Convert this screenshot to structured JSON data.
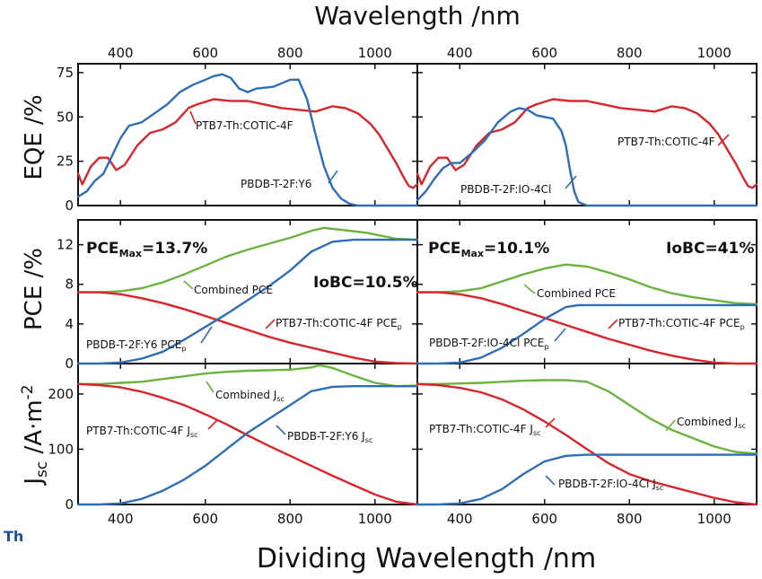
{
  "figure": {
    "top_title": "Wavelength /nm",
    "bottom_title": "Dividing Wavelength /nm",
    "corner_text": "Th",
    "colors": {
      "red": "#d7262b",
      "blue": "#2f6db6",
      "green": "#6ab33e",
      "axis": "#111111"
    }
  },
  "rows": {
    "eqe": {
      "ylabel_main": "EQE /%",
      "ylim": [
        0,
        80
      ],
      "yticks": [
        "0",
        "25",
        "50",
        "75"
      ],
      "ytick_values": [
        0,
        25,
        50,
        75
      ]
    },
    "pce": {
      "ylabel_main": "PCE /%",
      "ylim": [
        0,
        14.5
      ],
      "yticks": [
        "0",
        "4",
        "8",
        "12"
      ],
      "ytick_values": [
        0,
        4,
        8,
        12
      ]
    },
    "jsc": {
      "ylabel_main": "J",
      "ylabel_sub": "sc",
      "ylabel_unit": " /A·m",
      "ylabel_sup": "-2",
      "ylim": [
        0,
        255
      ],
      "yticks": [
        "0",
        "100",
        "200"
      ],
      "ytick_values": [
        0,
        100,
        200
      ]
    }
  },
  "xaxis": {
    "xlim": [
      300,
      1100
    ],
    "ticks": [
      "400",
      "600",
      "800",
      "1000"
    ],
    "tick_values": [
      400,
      600,
      800,
      1000
    ]
  },
  "chart_data": [
    {
      "type": "line",
      "panel": "eqe-left",
      "xlabel": "Wavelength /nm",
      "ylabel": "EQE /%",
      "series": [
        {
          "name": "PTB7-Th:COTIC-4F",
          "color": "red",
          "x": [
            300,
            310,
            330,
            350,
            370,
            390,
            410,
            440,
            470,
            500,
            530,
            560,
            580,
            620,
            660,
            700,
            740,
            780,
            820,
            860,
            900,
            930,
            960,
            990,
            1010,
            1030,
            1050,
            1070,
            1080,
            1090,
            1100
          ],
          "y": [
            18,
            12,
            22,
            27,
            27,
            20,
            23,
            34,
            41,
            43,
            47,
            55,
            57,
            60,
            59,
            59,
            57,
            55,
            54,
            53,
            56,
            55,
            52,
            46,
            40,
            32,
            24,
            15,
            11,
            10,
            12
          ]
        },
        {
          "name": "PBDB-T-2F:Y6",
          "color": "blue",
          "x": [
            300,
            320,
            340,
            360,
            380,
            400,
            420,
            450,
            480,
            510,
            540,
            570,
            600,
            620,
            640,
            660,
            680,
            700,
            720,
            760,
            800,
            820,
            840,
            860,
            880,
            900,
            920,
            940,
            960,
            1000,
            1100
          ],
          "y": [
            5,
            8,
            14,
            18,
            28,
            38,
            45,
            47,
            52,
            57,
            64,
            68,
            71,
            73,
            74,
            72,
            66,
            64,
            66,
            67,
            71,
            71,
            60,
            40,
            22,
            10,
            4,
            1,
            0,
            0,
            0
          ]
        }
      ]
    },
    {
      "type": "line",
      "panel": "eqe-right",
      "xlabel": "Wavelength /nm",
      "ylabel": "EQE /%",
      "series": [
        {
          "name": "PTB7-Th:COTIC-4F",
          "color": "red",
          "x": [
            300,
            310,
            330,
            350,
            370,
            390,
            410,
            440,
            470,
            500,
            530,
            560,
            580,
            620,
            660,
            700,
            740,
            780,
            820,
            860,
            900,
            930,
            960,
            990,
            1010,
            1030,
            1050,
            1070,
            1080,
            1090,
            1100
          ],
          "y": [
            18,
            12,
            22,
            27,
            27,
            20,
            23,
            34,
            41,
            43,
            47,
            55,
            57,
            60,
            59,
            59,
            57,
            55,
            54,
            53,
            56,
            55,
            52,
            46,
            40,
            32,
            24,
            15,
            11,
            10,
            12
          ]
        },
        {
          "name": "PBDB-T-2F:IO-4Cl",
          "color": "blue",
          "x": [
            300,
            320,
            340,
            360,
            380,
            400,
            430,
            460,
            490,
            520,
            540,
            560,
            580,
            600,
            620,
            640,
            650,
            660,
            670,
            680,
            700,
            750,
            1100
          ],
          "y": [
            3,
            8,
            15,
            21,
            24,
            24,
            30,
            37,
            47,
            53,
            55,
            54,
            51,
            50,
            49,
            42,
            34,
            20,
            8,
            2,
            0,
            0,
            0
          ]
        }
      ]
    },
    {
      "type": "line",
      "panel": "pce-left",
      "xlabel": "Dividing Wavelength /nm",
      "ylabel": "PCE /%",
      "series": [
        {
          "name": "Combined PCE",
          "color": "green",
          "x": [
            300,
            350,
            400,
            450,
            500,
            550,
            600,
            650,
            700,
            750,
            800,
            850,
            880,
            920,
            980,
            1050,
            1100
          ],
          "y": [
            7.2,
            7.2,
            7.3,
            7.6,
            8.2,
            9.0,
            9.9,
            10.8,
            11.5,
            12.1,
            12.7,
            13.4,
            13.7,
            13.5,
            13.2,
            12.6,
            12.5
          ]
        },
        {
          "name": "PTB7-Th:COTIC-4F PCE",
          "color": "red",
          "x": [
            300,
            350,
            400,
            450,
            500,
            550,
            600,
            650,
            700,
            750,
            800,
            850,
            900,
            950,
            1000,
            1050,
            1100
          ],
          "y": [
            7.2,
            7.2,
            7.0,
            6.6,
            6.1,
            5.5,
            4.8,
            4.1,
            3.4,
            2.7,
            2.1,
            1.6,
            1.1,
            0.6,
            0.2,
            0.05,
            0
          ]
        },
        {
          "name": "PBDB-T-2F:Y6 PCE",
          "color": "blue",
          "x": [
            300,
            350,
            400,
            450,
            500,
            550,
            600,
            650,
            700,
            750,
            800,
            850,
            900,
            950,
            1000,
            1050,
            1100
          ],
          "y": [
            0,
            0,
            0.1,
            0.5,
            1.2,
            2.4,
            3.7,
            5.0,
            6.4,
            7.8,
            9.4,
            11.3,
            12.3,
            12.5,
            12.5,
            12.5,
            12.5
          ]
        }
      ]
    },
    {
      "type": "line",
      "panel": "pce-right",
      "xlabel": "Dividing Wavelength /nm",
      "ylabel": "PCE /%",
      "series": [
        {
          "name": "Combined PCE",
          "color": "green",
          "x": [
            300,
            350,
            400,
            450,
            500,
            550,
            600,
            650,
            700,
            750,
            800,
            850,
            900,
            950,
            1000,
            1050,
            1100
          ],
          "y": [
            7.2,
            7.2,
            7.3,
            7.6,
            8.3,
            9.0,
            9.6,
            10.0,
            9.8,
            9.2,
            8.5,
            7.7,
            7.1,
            6.7,
            6.4,
            6.1,
            6.0
          ]
        },
        {
          "name": "PTB7-Th:COTIC-4F PCE",
          "color": "red",
          "x": [
            300,
            350,
            400,
            450,
            500,
            550,
            600,
            650,
            700,
            750,
            800,
            850,
            900,
            950,
            1000,
            1050,
            1100
          ],
          "y": [
            7.2,
            7.2,
            7.0,
            6.6,
            6.0,
            5.3,
            4.6,
            3.9,
            3.2,
            2.5,
            1.9,
            1.3,
            0.8,
            0.4,
            0.1,
            0,
            0
          ]
        },
        {
          "name": "PBDB-T-2F:IO-4Cl PCE",
          "color": "blue",
          "x": [
            300,
            350,
            400,
            450,
            500,
            550,
            600,
            650,
            680,
            700,
            1100
          ],
          "y": [
            0,
            0,
            0.1,
            0.6,
            1.6,
            3.0,
            4.5,
            5.7,
            5.9,
            5.9,
            5.9
          ]
        }
      ]
    },
    {
      "type": "line",
      "panel": "jsc-left",
      "xlabel": "Dividing Wavelength /nm",
      "ylabel": "Jsc /A·m-2",
      "series": [
        {
          "name": "Combined Jsc",
          "color": "green",
          "x": [
            300,
            350,
            400,
            450,
            500,
            550,
            600,
            650,
            700,
            750,
            800,
            850,
            870,
            900,
            950,
            1000,
            1050,
            1100
          ],
          "y": [
            218,
            218,
            220,
            222,
            227,
            232,
            237,
            240,
            242,
            243,
            244,
            248,
            252,
            247,
            233,
            220,
            214,
            215
          ]
        },
        {
          "name": "PTB7-Th:COTIC-4F Jsc",
          "color": "red",
          "x": [
            300,
            350,
            400,
            450,
            500,
            550,
            600,
            650,
            700,
            750,
            800,
            850,
            900,
            950,
            1000,
            1050,
            1100
          ],
          "y": [
            218,
            216,
            212,
            204,
            193,
            180,
            163,
            145,
            125,
            106,
            88,
            70,
            52,
            35,
            18,
            5,
            0
          ]
        },
        {
          "name": "PBDB-T-2F:Y6 Jsc",
          "color": "blue",
          "x": [
            300,
            350,
            400,
            450,
            500,
            550,
            600,
            650,
            700,
            750,
            800,
            850,
            900,
            950,
            1000,
            1050,
            1100
          ],
          "y": [
            0,
            0,
            2,
            10,
            25,
            45,
            70,
            100,
            130,
            155,
            180,
            205,
            213,
            214,
            214,
            214,
            214
          ]
        }
      ]
    },
    {
      "type": "line",
      "panel": "jsc-right",
      "xlabel": "Dividing Wavelength /nm",
      "ylabel": "Jsc /A·m-2",
      "series": [
        {
          "name": "Combined Jsc",
          "color": "green",
          "x": [
            300,
            350,
            400,
            450,
            500,
            550,
            600,
            650,
            700,
            750,
            800,
            850,
            900,
            950,
            1000,
            1050,
            1100
          ],
          "y": [
            218,
            218,
            219,
            220,
            222,
            224,
            225,
            225,
            222,
            205,
            180,
            155,
            135,
            120,
            105,
            95,
            92
          ]
        },
        {
          "name": "PTB7-Th:COTIC-4F Jsc",
          "color": "red",
          "x": [
            300,
            350,
            400,
            450,
            500,
            550,
            600,
            650,
            700,
            750,
            800,
            850,
            900,
            950,
            1000,
            1050,
            1100
          ],
          "y": [
            218,
            216,
            211,
            203,
            190,
            172,
            150,
            126,
            100,
            75,
            55,
            42,
            32,
            22,
            12,
            4,
            0
          ]
        },
        {
          "name": "PBDB-T-2F:IO-4Cl Jsc",
          "color": "blue",
          "x": [
            300,
            350,
            400,
            450,
            500,
            550,
            600,
            650,
            700,
            1100
          ],
          "y": [
            0,
            0,
            2,
            10,
            28,
            55,
            78,
            88,
            90,
            90
          ]
        }
      ]
    }
  ],
  "annotations": {
    "eqe_left_red": "PTB7-Th:COTIC-4F",
    "eqe_left_blue": "PBDB-T-2F:Y6",
    "eqe_right_red": "PTB7-Th:COTIC-4F",
    "eqe_right_blue": "PBDB-T-2F:IO-4Cl",
    "pce_left_max": "PCE",
    "pce_left_max_sub": "Max",
    "pce_left_max_val": "=13.7%",
    "pce_left_iobc": "IoBC=10.5%",
    "pce_left_green": "Combined PCE",
    "pce_left_red": "PTB7-Th:COTIC-4F PCE",
    "pce_left_red_sub": "p",
    "pce_left_blue": "PBDB-T-2F:Y6 PCE",
    "pce_left_blue_sub": "p",
    "pce_right_max": "PCE",
    "pce_right_max_sub": "Max",
    "pce_right_max_val": "=10.1%",
    "pce_right_iobc": "IoBC=41%",
    "pce_right_green": "Combined PCE",
    "pce_right_red": "PTB7-Th:COTIC-4F PCE",
    "pce_right_red_sub": "p",
    "pce_right_blue": "PBDB-T-2F:IO-4Cl PCE",
    "pce_right_blue_sub": "p",
    "jsc_left_green": "Combined J",
    "jsc_left_green_sub": "sc",
    "jsc_left_red": "PTB7-Th:COTIC-4F J",
    "jsc_left_red_sub": "sc",
    "jsc_left_blue": "PBDB-T-2F:Y6 J",
    "jsc_left_blue_sub": "sc",
    "jsc_right_green": "Combined J",
    "jsc_right_green_sub": "sc",
    "jsc_right_red": "PTB7-Th:COTIC-4F J",
    "jsc_right_red_sub": "sc",
    "jsc_right_blue": "PBDB-T-2F:IO-4Cl J",
    "jsc_right_blue_sub": "sc"
  }
}
